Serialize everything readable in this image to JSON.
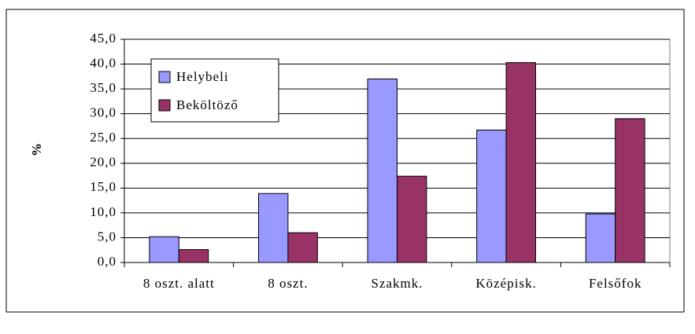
{
  "chart_data": {
    "type": "bar",
    "ylabel": "%",
    "categories": [
      "8 oszt. alatt",
      "8 oszt.",
      "Szakmk.",
      "Középisk.",
      "Felsőfok"
    ],
    "series": [
      {
        "name": "Helybeli",
        "color": "#9999ff",
        "values": [
          5.2,
          13.9,
          37.0,
          26.7,
          9.8
        ]
      },
      {
        "name": "Beköltöző",
        "color": "#993366",
        "values": [
          2.6,
          6.0,
          17.4,
          40.3,
          29.0
        ]
      }
    ],
    "ylim": [
      0,
      45
    ],
    "yticks": [
      {
        "value": 0,
        "label": "0,0"
      },
      {
        "value": 5,
        "label": "5,0"
      },
      {
        "value": 10,
        "label": "10,0"
      },
      {
        "value": 15,
        "label": "15,0"
      },
      {
        "value": 20,
        "label": "20,0"
      },
      {
        "value": 25,
        "label": "25,0"
      },
      {
        "value": 30,
        "label": "30,0"
      },
      {
        "value": 35,
        "label": "35,0"
      },
      {
        "value": 40,
        "label": "40,0"
      },
      {
        "value": 45,
        "label": "45,0"
      }
    ],
    "grid": true,
    "legend": "upper-left"
  }
}
